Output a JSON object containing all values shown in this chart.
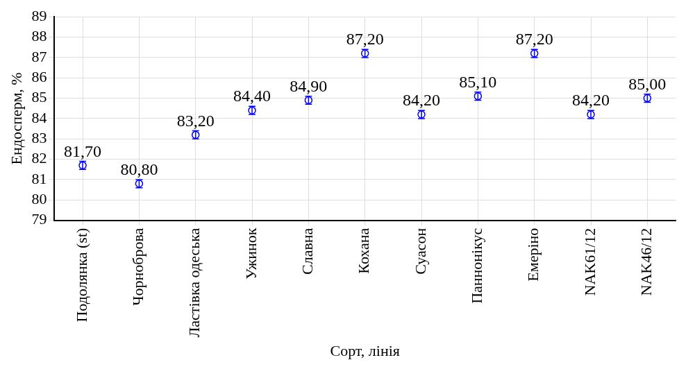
{
  "chart_data": {
    "type": "scatter",
    "xlabel": "Сорт, лінія",
    "ylabel": "Ендосперм, %",
    "categories": [
      "Подолянка (st)",
      "Чорноброва",
      "Ластівка одеська",
      "Ужинок",
      "Славна",
      "Кохана",
      "Суасон",
      "Паннонікус",
      "Емеріно",
      "NAK61/12",
      "NAK46/12"
    ],
    "series": [
      {
        "color": "#0000ff",
        "values": [
          81.7,
          80.8,
          83.2,
          84.4,
          84.9,
          87.2,
          84.2,
          85.1,
          87.2,
          84.2,
          85.0
        ],
        "errors": [
          0.2,
          0.2,
          0.2,
          0.2,
          0.2,
          0.2,
          0.2,
          0.2,
          0.2,
          0.2,
          0.2
        ],
        "value_labels": [
          "81,70",
          "80,80",
          "83,20",
          "84,40",
          "84,90",
          "87,20",
          "84,20",
          "85,10",
          "87,20",
          "84,20",
          "85,00"
        ]
      }
    ],
    "ylim": [
      79,
      89
    ],
    "yticks": [
      79,
      80,
      81,
      82,
      83,
      84,
      85,
      86,
      87,
      88,
      89
    ],
    "grid": true,
    "marker": "circle",
    "legend": false
  }
}
